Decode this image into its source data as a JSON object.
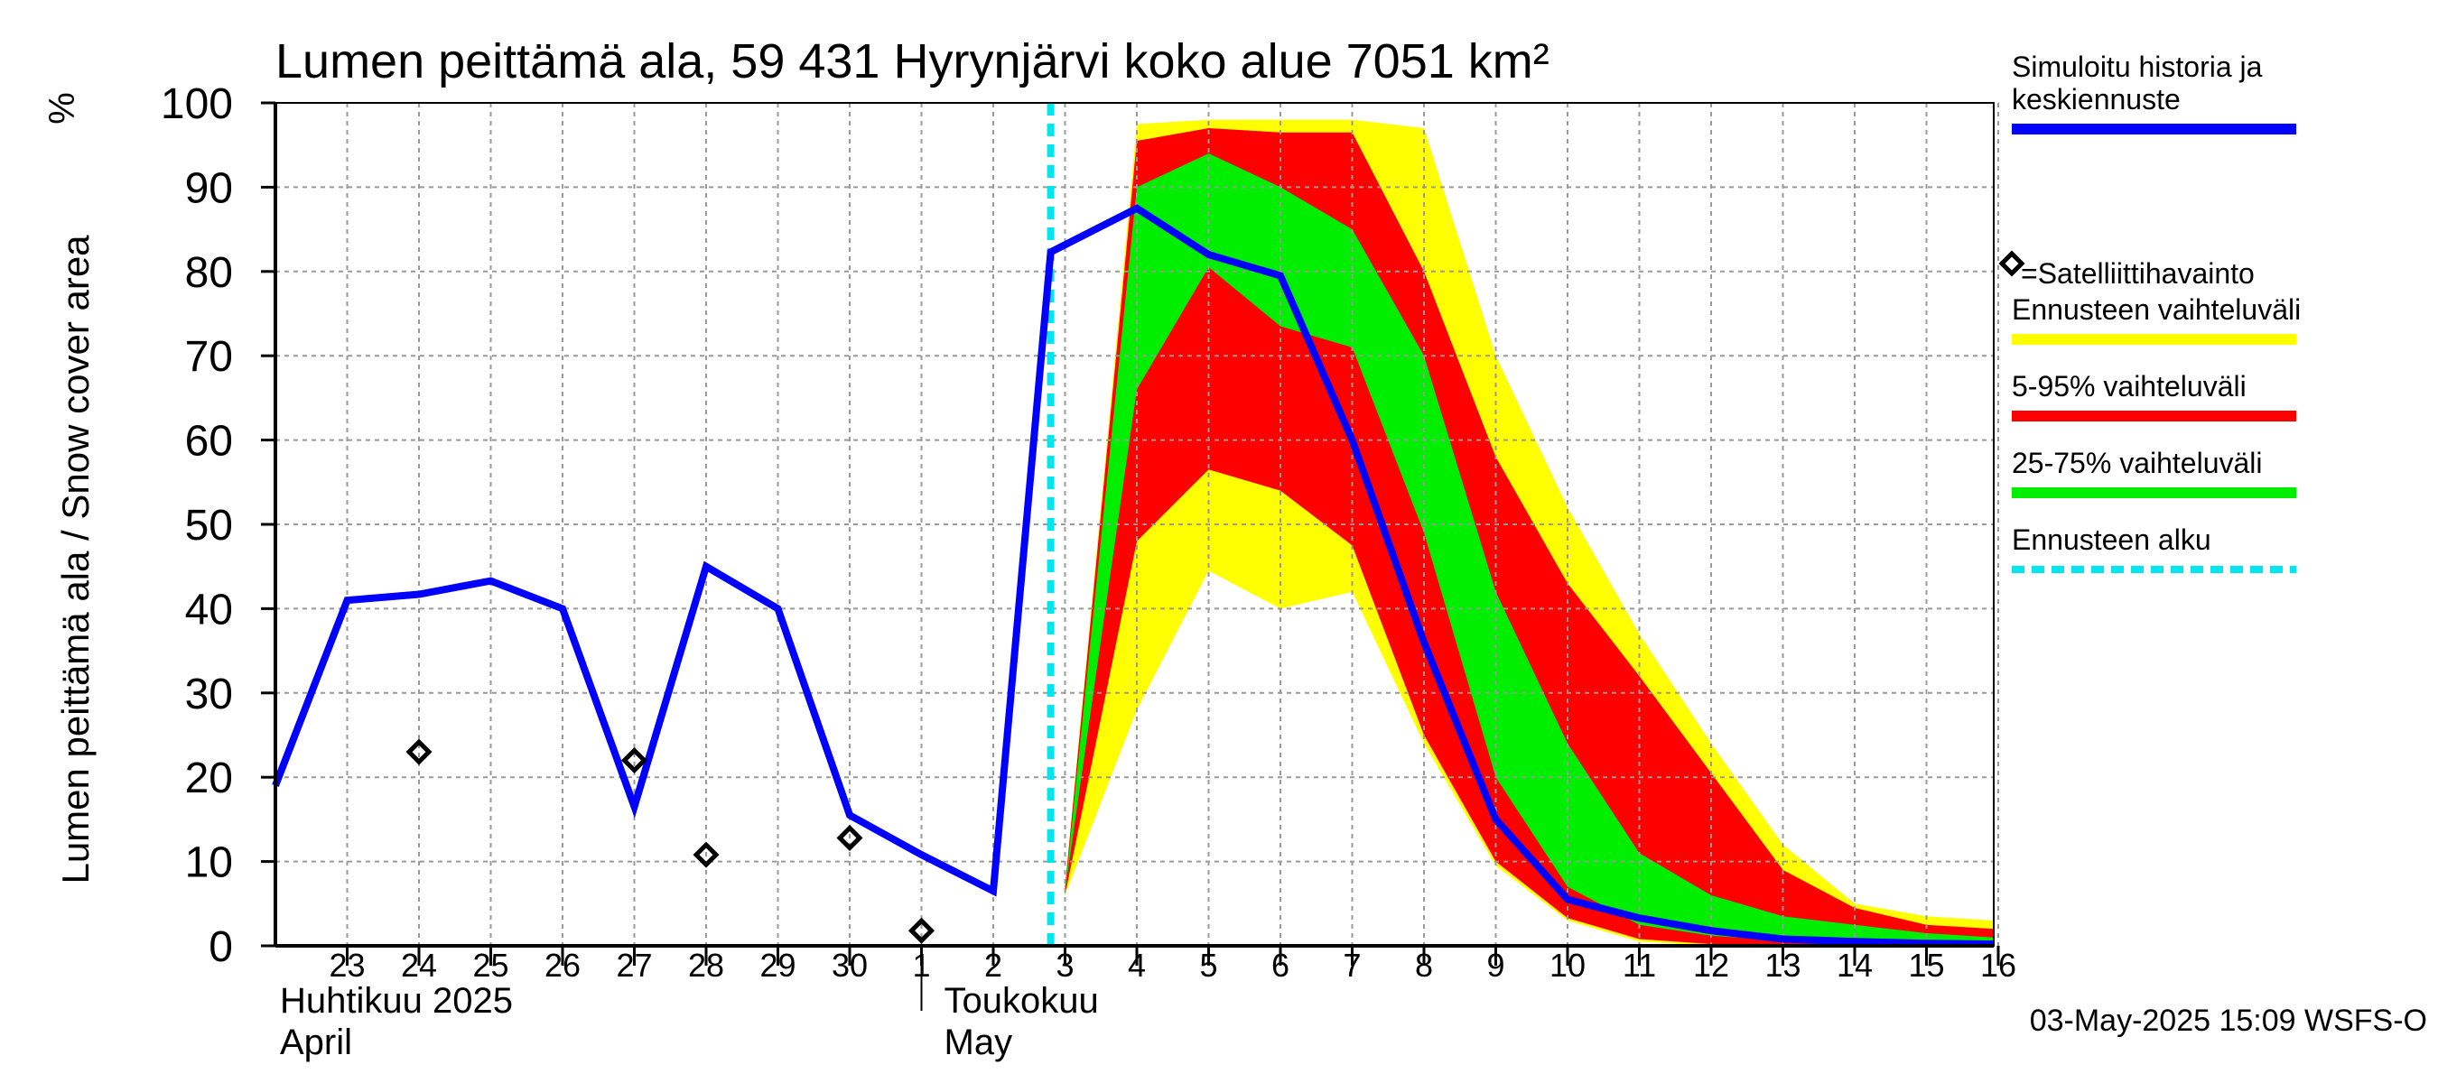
{
  "chart_data": {
    "type": "area",
    "title": "Lumen peittämä ala, 59 431 Hyrynjärvi koko alue 7051 km²",
    "ylabel": "Lumen peittämä ala / Snow cover area",
    "yunit": "%",
    "ylim": [
      0,
      100
    ],
    "yticks": [
      0,
      10,
      20,
      30,
      40,
      50,
      60,
      70,
      80,
      90,
      100
    ],
    "grid": true,
    "legend_position": "right",
    "x_range": [
      "2025-04-22",
      "2025-05-16"
    ],
    "x_ticks": [
      {
        "date": "2025-04-23",
        "label": "23"
      },
      {
        "date": "2025-04-24",
        "label": "24"
      },
      {
        "date": "2025-04-25",
        "label": "25"
      },
      {
        "date": "2025-04-26",
        "label": "26"
      },
      {
        "date": "2025-04-27",
        "label": "27"
      },
      {
        "date": "2025-04-28",
        "label": "28"
      },
      {
        "date": "2025-04-29",
        "label": "29"
      },
      {
        "date": "2025-04-30",
        "label": "30"
      },
      {
        "date": "2025-05-01",
        "label": "1"
      },
      {
        "date": "2025-05-02",
        "label": "2"
      },
      {
        "date": "2025-05-03",
        "label": "3"
      },
      {
        "date": "2025-05-04",
        "label": "4"
      },
      {
        "date": "2025-05-05",
        "label": "5"
      },
      {
        "date": "2025-05-06",
        "label": "6"
      },
      {
        "date": "2025-05-07",
        "label": "7"
      },
      {
        "date": "2025-05-08",
        "label": "8"
      },
      {
        "date": "2025-05-09",
        "label": "9"
      },
      {
        "date": "2025-05-10",
        "label": "10"
      },
      {
        "date": "2025-05-11",
        "label": "11"
      },
      {
        "date": "2025-05-12",
        "label": "12"
      },
      {
        "date": "2025-05-13",
        "label": "13"
      },
      {
        "date": "2025-05-14",
        "label": "14"
      },
      {
        "date": "2025-05-15",
        "label": "15"
      },
      {
        "date": "2025-05-16",
        "label": "16"
      }
    ],
    "month_labels": [
      {
        "date": "2025-04-23",
        "line1": "Huhtikuu  2025",
        "line2": "April"
      },
      {
        "date": "2025-05-01",
        "line1": "Toukokuu",
        "line2": "May"
      }
    ],
    "month_boundary": "2025-05-01",
    "forecast_start": "2025-05-03",
    "x": [
      "2025-04-22",
      "2025-04-23",
      "2025-04-24",
      "2025-04-25",
      "2025-04-26",
      "2025-04-27",
      "2025-04-28",
      "2025-04-29",
      "2025-04-30",
      "2025-05-01",
      "2025-05-02",
      "2025-05-03",
      "2025-05-04",
      "2025-05-05",
      "2025-05-06",
      "2025-05-07",
      "2025-05-08",
      "2025-05-09",
      "2025-05-10",
      "2025-05-11",
      "2025-05-12",
      "2025-05-13",
      "2025-05-14",
      "2025-05-15",
      "2025-05-16",
      "2025-05-17"
    ],
    "median": [
      19,
      41,
      41.7,
      43.3,
      40,
      16.5,
      45,
      40,
      15.5,
      10.8,
      6.5,
      82.3,
      87.5,
      82,
      79.5,
      60,
      36,
      15,
      5.5,
      3.3,
      1.8,
      0.8,
      0.5,
      0.3,
      0.2,
      0.2
    ],
    "forecast_x": [
      "2025-05-03",
      "2025-05-04",
      "2025-05-05",
      "2025-05-06",
      "2025-05-07",
      "2025-05-08",
      "2025-05-09",
      "2025-05-10",
      "2025-05-11",
      "2025-05-12",
      "2025-05-13",
      "2025-05-14",
      "2025-05-15",
      "2025-05-16",
      "2025-05-17"
    ],
    "bands": {
      "range_max": [
        7,
        97.5,
        98,
        98,
        98,
        97,
        70,
        52,
        37,
        24,
        12,
        5,
        3.5,
        3,
        5
      ],
      "range_min": [
        6,
        28,
        44.5,
        40,
        42,
        24,
        9.5,
        3,
        0.5,
        0,
        0,
        0,
        0,
        0,
        0
      ],
      "p95": [
        7,
        95.5,
        97,
        96.5,
        96.5,
        80,
        58,
        43,
        32,
        20.5,
        9,
        4.5,
        2.5,
        2,
        1.5
      ],
      "p5": [
        6,
        48,
        56.5,
        54,
        47.5,
        25,
        10,
        3.3,
        0.8,
        0.2,
        0,
        0,
        0,
        0,
        0
      ],
      "p75": [
        6.5,
        90,
        94,
        90,
        85,
        70,
        42,
        24,
        11,
        6,
        3.5,
        2.5,
        1.5,
        1,
        0.8
      ],
      "p25": [
        6.5,
        66,
        80.5,
        73.5,
        71,
        49,
        20,
        7,
        2.5,
        1.2,
        0.6,
        0.3,
        0.2,
        0.1,
        0.1
      ]
    },
    "satellite_observations": [
      {
        "date": "2025-04-24",
        "value": 23
      },
      {
        "date": "2025-04-27",
        "value": 22
      },
      {
        "date": "2025-04-28",
        "value": 10.8
      },
      {
        "date": "2025-04-30",
        "value": 12.8
      },
      {
        "date": "2025-05-01",
        "value": 1.8
      }
    ],
    "colors": {
      "median": "#0000ff",
      "range": "#ffff00",
      "p5_95": "#ff0000",
      "p25_75": "#00ee00",
      "forecast_start": "#00e5ee",
      "grid": "#999999",
      "observation": "#000000"
    },
    "legend": [
      {
        "label": "Simuloitu historia ja keskiennuste",
        "lines": [
          "Simuloitu historia ja",
          "keskiennuste"
        ],
        "style": "line",
        "color": "#0000ff"
      },
      {
        "label": "=Satelliittihavainto",
        "lines": [
          "=Satelliittihavainto"
        ],
        "style": "diamond",
        "color": "#000000"
      },
      {
        "label": "Ennusteen vaihteluväli",
        "lines": [
          "Ennusteen vaihteluväli"
        ],
        "style": "line",
        "color": "#ffff00"
      },
      {
        "label": "5-95% vaihteluväli",
        "lines": [
          "5-95% vaihteluväli"
        ],
        "style": "line",
        "color": "#ff0000"
      },
      {
        "label": "25-75% vaihteluväli",
        "lines": [
          "25-75% vaihteluväli"
        ],
        "style": "line",
        "color": "#00ee00"
      },
      {
        "label": "Ennusteen alku",
        "lines": [
          "Ennusteen alku"
        ],
        "style": "dashed",
        "color": "#00e5ee"
      }
    ]
  },
  "footer": {
    "timestamp": "03-May-2025 15:09 WSFS-O"
  }
}
